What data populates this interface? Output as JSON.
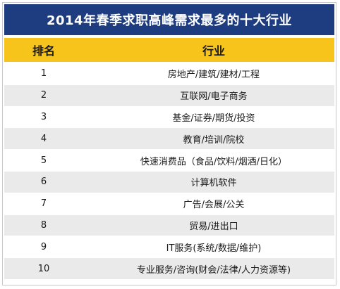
{
  "title": "2014年春季求职高峰需求最多的十大行业",
  "header": {
    "rank_label": "排名",
    "industry_label": "行业"
  },
  "rows": [
    {
      "rank": "1",
      "industry": "房地产/建筑/建材/工程"
    },
    {
      "rank": "2",
      "industry": "互联网/电子商务"
    },
    {
      "rank": "3",
      "industry": "基金/证券/期货/投资"
    },
    {
      "rank": "4",
      "industry": "教育/培训/院校"
    },
    {
      "rank": "5",
      "industry": "快速消费品（食品/饮料/烟酒/日化）"
    },
    {
      "rank": "6",
      "industry": "计算机软件"
    },
    {
      "rank": "7",
      "industry": "广告/会展/公关"
    },
    {
      "rank": "8",
      "industry": "贸易/进出口"
    },
    {
      "rank": "9",
      "industry": "IT服务(系统/数据/维护)"
    },
    {
      "rank": "10",
      "industry": "专业服务/咨询(财会/法律/人力资源等)"
    }
  ],
  "colors": {
    "title_bg": "#1e3d80",
    "header_bg": "#f6c41b",
    "stripe": "#eaeaea"
  }
}
